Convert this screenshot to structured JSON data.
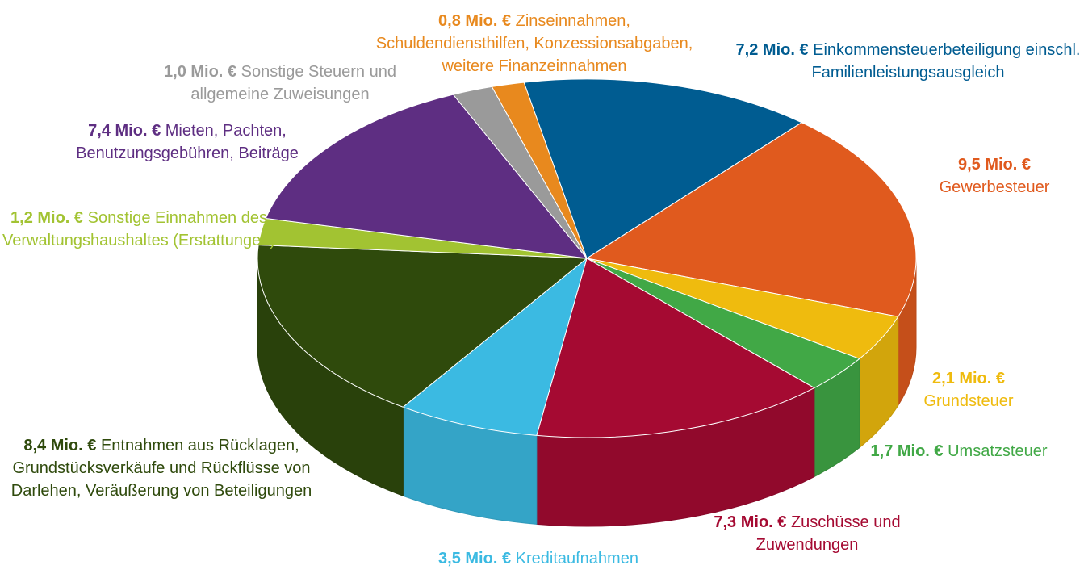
{
  "chart_data": {
    "type": "pie3d",
    "categories": [
      "Einkommensteuerbeteiligung einschl. Familienleistungsausgleich",
      "Gewerbesteuer",
      "Grundsteuer",
      "Umsatzsteuer",
      "Zuschüsse und Zuwendungen",
      "Kreditaufnahmen",
      "Entnahmen aus Rücklagen, Grundstücksverkäufe und Rückflüsse von Darlehen, Veräußerung von Beteiligungen",
      "Sonstige Einnahmen des Verwaltungshaushaltes (Erstattungen)",
      "Mieten, Pachten, Benutzungsgebühren, Beiträge",
      "Sonstige Steuern und allgemeine Zuweisungen",
      "Zinseinnahmen, Schuldendiensthilfen, Konzessionsabgaben, weitere Finanzeinnahmen"
    ],
    "values": [
      7.2,
      9.5,
      2.1,
      1.7,
      7.3,
      3.5,
      8.4,
      1.2,
      7.4,
      1.0,
      0.8
    ],
    "value_labels": [
      "7,2 Mio. €",
      "9,5 Mio. €",
      "2,1 Mio. €",
      "1,7 Mio. €",
      "7,3 Mio. €",
      "3,5 Mio. €",
      "8,4 Mio. €",
      "1,2 Mio. €",
      "7,4 Mio. €",
      "1,0 Mio. €",
      "0,8 Mio. €"
    ],
    "colors": [
      "#005c91",
      "#e05a1e",
      "#efbb0e",
      "#41a846",
      "#a50a32",
      "#3bbae2",
      "#2f4a0c",
      "#a2c332",
      "#5e2e82",
      "#9a9a9a",
      "#e8891e"
    ]
  }
}
